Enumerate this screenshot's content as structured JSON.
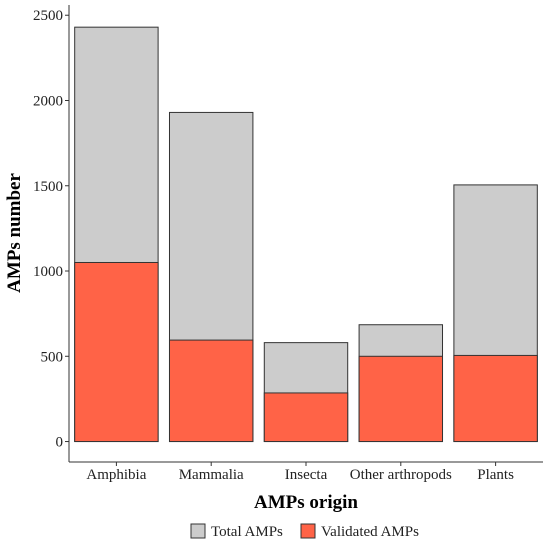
{
  "chart_data": {
    "type": "bar",
    "categories": [
      "Amphibia",
      "Mammalia",
      "Insecta",
      "Other arthropods",
      "Plants"
    ],
    "series": [
      {
        "name": "Total AMPs",
        "values": [
          2430,
          1930,
          580,
          685,
          1505
        ]
      },
      {
        "name": "Validated AMPs",
        "values": [
          1050,
          595,
          285,
          500,
          505
        ]
      }
    ],
    "xlabel": "AMPs origin",
    "ylabel": "AMPs number",
    "yticks": [
      "0",
      "500",
      "1000",
      "1500",
      "2000",
      "2500"
    ],
    "ylim": [
      -120,
      2560
    ],
    "grid": false,
    "legend_position": "bottom",
    "colors": {
      "total": "#cccccc",
      "validated": "#ff6347",
      "edge": "#333333"
    }
  }
}
